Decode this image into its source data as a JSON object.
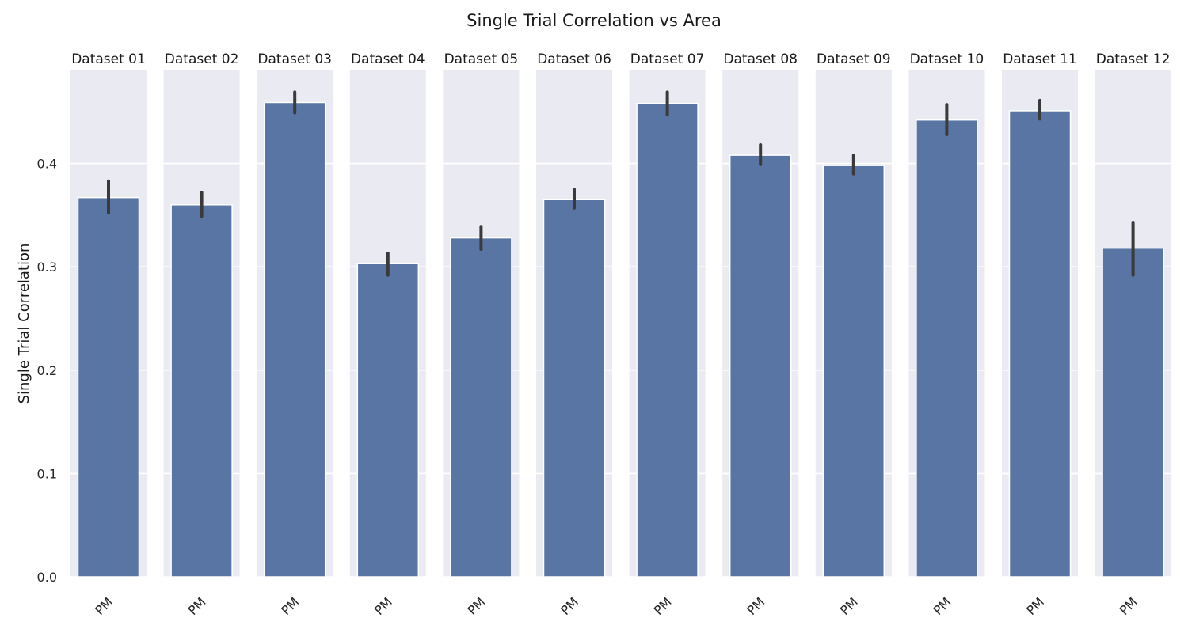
{
  "chart_data": {
    "type": "bar",
    "title": "Single Trial Correlation vs Area",
    "ylabel": "Single Trial Correlation",
    "xlabel": "",
    "ylim": [
      0,
      0.49
    ],
    "yticks": [
      "0.0",
      "0.1",
      "0.2",
      "0.3",
      "0.4"
    ],
    "grid": true,
    "colors": {
      "bar": "#5975a4",
      "bar_edge": "#ffffff",
      "panel_bg": "#eaeaf2",
      "grid": "#ffffff",
      "errorbar": "#3a3a3a"
    },
    "panels": [
      {
        "title": "Dataset 01",
        "category": "PM",
        "value": 0.367,
        "ci": [
          0.352,
          0.383
        ]
      },
      {
        "title": "Dataset 02",
        "category": "PM",
        "value": 0.36,
        "ci": [
          0.349,
          0.372
        ]
      },
      {
        "title": "Dataset 03",
        "category": "PM",
        "value": 0.459,
        "ci": [
          0.449,
          0.469
        ]
      },
      {
        "title": "Dataset 04",
        "category": "PM",
        "value": 0.303,
        "ci": [
          0.292,
          0.313
        ]
      },
      {
        "title": "Dataset 05",
        "category": "PM",
        "value": 0.328,
        "ci": [
          0.317,
          0.339
        ]
      },
      {
        "title": "Dataset 06",
        "category": "PM",
        "value": 0.365,
        "ci": [
          0.357,
          0.375
        ]
      },
      {
        "title": "Dataset 07",
        "category": "PM",
        "value": 0.458,
        "ci": [
          0.447,
          0.469
        ]
      },
      {
        "title": "Dataset 08",
        "category": "PM",
        "value": 0.408,
        "ci": [
          0.399,
          0.418
        ]
      },
      {
        "title": "Dataset 09",
        "category": "PM",
        "value": 0.398,
        "ci": [
          0.39,
          0.408
        ]
      },
      {
        "title": "Dataset 10",
        "category": "PM",
        "value": 0.442,
        "ci": [
          0.428,
          0.457
        ]
      },
      {
        "title": "Dataset 11",
        "category": "PM",
        "value": 0.451,
        "ci": [
          0.443,
          0.461
        ]
      },
      {
        "title": "Dataset 12",
        "category": "PM",
        "value": 0.318,
        "ci": [
          0.292,
          0.343
        ]
      }
    ]
  }
}
